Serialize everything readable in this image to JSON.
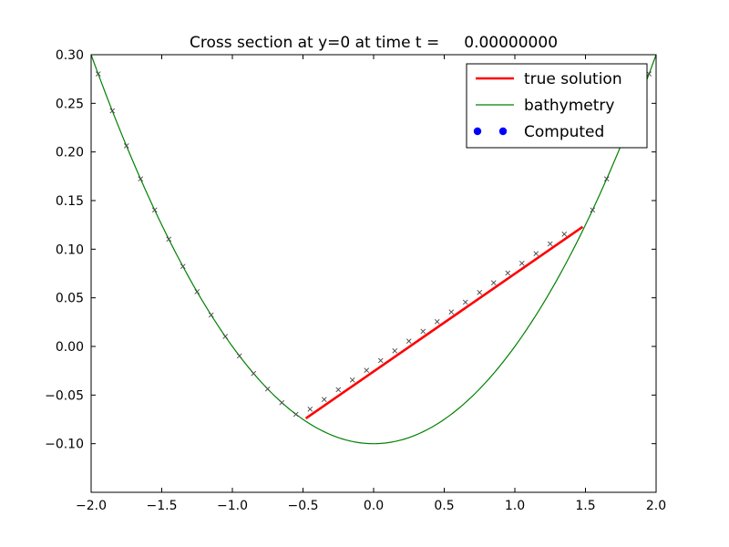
{
  "chart_data": {
    "type": "line",
    "title": "Cross section at y=0 at time t =     0.00000000",
    "xlabel": "",
    "ylabel": "",
    "xlim": [
      -2.0,
      2.0
    ],
    "ylim": [
      -0.15,
      0.3
    ],
    "x_ticks": [
      -2.0,
      -1.5,
      -1.0,
      -0.5,
      0.0,
      0.5,
      1.0,
      1.5,
      2.0
    ],
    "x_tick_labels": [
      "−2.0",
      "−1.5",
      "−1.0",
      "−0.5",
      "0.0",
      "0.5",
      "1.0",
      "1.5",
      "2.0"
    ],
    "y_ticks": [
      -0.1,
      -0.05,
      0.0,
      0.05,
      0.1,
      0.15,
      0.2,
      0.25,
      0.3
    ],
    "y_tick_labels": [
      "−0.10",
      "−0.05",
      "0.00",
      "0.05",
      "0.10",
      "0.15",
      "0.20",
      "0.25",
      "0.30"
    ],
    "grid": false,
    "legend_position": "top-right",
    "series": [
      {
        "name": "true solution",
        "color": "#ff0000",
        "style": "line-thick",
        "x": [
          -0.48,
          1.48
        ],
        "y": [
          -0.074,
          0.123
        ]
      },
      {
        "name": "bathymetry",
        "color": "#008000",
        "style": "line",
        "function": "0.1*x^2 - 0.1",
        "x_range": [
          -2.0,
          2.0
        ]
      },
      {
        "name": "Computed",
        "color": "#0000ff",
        "style": "markers",
        "marker_drawn": "x",
        "marker_color": "#444444",
        "x": [
          -1.95,
          -1.85,
          -1.75,
          -1.65,
          -1.55,
          -1.45,
          -1.35,
          -1.25,
          -1.15,
          -1.05,
          -0.95,
          -0.85,
          -0.75,
          -0.65,
          -0.55,
          -0.45,
          -0.35,
          -0.25,
          -0.15,
          -0.05,
          0.05,
          0.15,
          0.25,
          0.35,
          0.45,
          0.55,
          0.65,
          0.75,
          0.85,
          0.95,
          1.05,
          1.15,
          1.25,
          1.35,
          1.55,
          1.65,
          1.75,
          1.85,
          1.95
        ],
        "y": [
          0.2803,
          0.2423,
          0.2063,
          0.1723,
          0.1403,
          0.1103,
          0.0823,
          0.0563,
          0.0323,
          0.0103,
          -0.0098,
          -0.0278,
          -0.0438,
          -0.0578,
          -0.0698,
          -0.0645,
          -0.0545,
          -0.0445,
          -0.0345,
          -0.0245,
          -0.0145,
          -0.0045,
          0.0055,
          0.0155,
          0.0255,
          0.0355,
          0.0455,
          0.0555,
          0.0655,
          0.0755,
          0.0855,
          0.0955,
          0.1055,
          0.1155,
          0.1403,
          0.1723,
          0.2063,
          0.2423,
          0.2803
        ]
      }
    ]
  }
}
